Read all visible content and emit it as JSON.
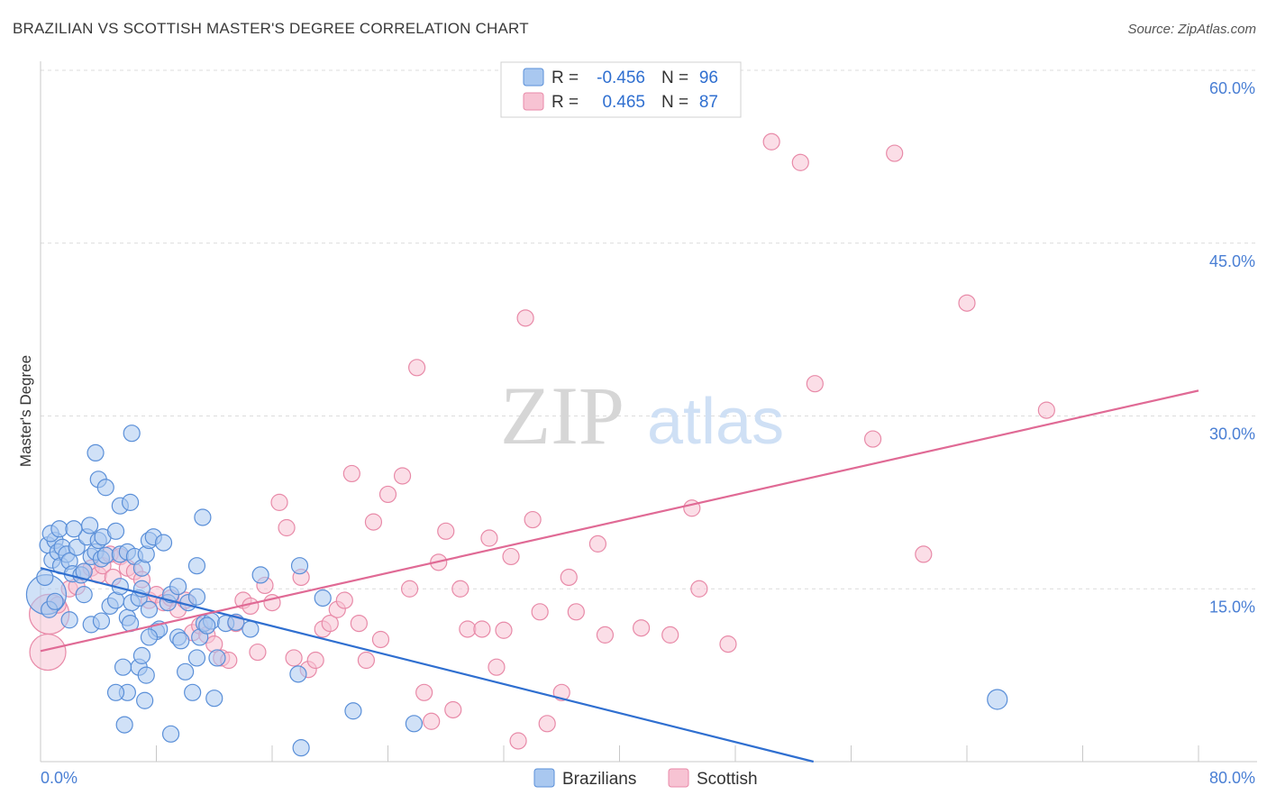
{
  "title": "BRAZILIAN VS SCOTTISH MASTER'S DEGREE CORRELATION CHART",
  "source": "Source: ZipAtlas.com",
  "watermark": {
    "zip": "ZIP",
    "atlas": "atlas"
  },
  "colors": {
    "blue_fill": "#a9c8f0",
    "blue_stroke": "#5a8fd8",
    "blue_line": "#2f6fd0",
    "pink_fill": "#f7c3d3",
    "pink_stroke": "#e88aa8",
    "pink_line": "#e06a95",
    "grid": "#dcdcdc",
    "axis_label": "#4a7fd4"
  },
  "legend": {
    "row1": {
      "r_label": "R =",
      "r_value": "-0.456",
      "n_label": "N =",
      "n_value": "96"
    },
    "row2": {
      "r_label": "R =",
      "r_value": "0.465",
      "n_label": "N =",
      "n_value": "87"
    }
  },
  "chart_data": {
    "type": "scatter",
    "title": "BRAZILIAN VS SCOTTISH MASTER'S DEGREE CORRELATION CHART",
    "xlabel": "",
    "ylabel": "Master's Degree",
    "xlim": [
      0,
      80
    ],
    "ylim": [
      0,
      60
    ],
    "y_ticks": [
      15,
      30,
      45,
      60
    ],
    "y_tick_labels": [
      "15.0%",
      "30.0%",
      "45.0%",
      "60.0%"
    ],
    "x_tick_labels": [
      "0.0%",
      "80.0%"
    ],
    "x_minor_ticks": [
      0,
      8,
      16,
      24,
      32,
      40,
      48,
      56,
      64,
      72,
      80
    ],
    "series": [
      {
        "name": "Brazilians",
        "R": -0.456,
        "N": 96,
        "trend": {
          "x0": 0,
          "y0": 16.8,
          "x1": 53.4,
          "y1": 0
        },
        "points": [
          [
            0.4,
            14.5
          ],
          [
            0.6,
            13.2
          ],
          [
            0.5,
            18.8
          ],
          [
            0.8,
            17.5
          ],
          [
            1.0,
            19.2
          ],
          [
            1.2,
            18.2
          ],
          [
            1.5,
            18.6
          ],
          [
            1.4,
            17.0
          ],
          [
            1.8,
            18.0
          ],
          [
            2.0,
            17.4
          ],
          [
            2.2,
            16.3
          ],
          [
            2.5,
            18.6
          ],
          [
            2.8,
            16.2
          ],
          [
            3.0,
            16.5
          ],
          [
            3.2,
            19.5
          ],
          [
            3.5,
            17.8
          ],
          [
            3.8,
            18.2
          ],
          [
            4.0,
            19.2
          ],
          [
            4.2,
            17.6
          ],
          [
            4.5,
            17.9
          ],
          [
            0.7,
            19.8
          ],
          [
            1.3,
            20.2
          ],
          [
            2.3,
            20.2
          ],
          [
            3.4,
            20.5
          ],
          [
            4.3,
            19.5
          ],
          [
            5.2,
            20.0
          ],
          [
            5.5,
            18.0
          ],
          [
            6.0,
            18.2
          ],
          [
            6.5,
            17.8
          ],
          [
            7.0,
            16.8
          ],
          [
            7.3,
            18.0
          ],
          [
            7.5,
            19.2
          ],
          [
            7.8,
            19.5
          ],
          [
            3.8,
            26.8
          ],
          [
            4.0,
            24.5
          ],
          [
            4.5,
            23.8
          ],
          [
            5.5,
            22.2
          ],
          [
            6.2,
            22.5
          ],
          [
            6.3,
            28.5
          ],
          [
            11.2,
            21.2
          ],
          [
            10.8,
            17.0
          ],
          [
            3.5,
            11.9
          ],
          [
            4.2,
            12.2
          ],
          [
            4.8,
            13.5
          ],
          [
            5.2,
            14.0
          ],
          [
            5.5,
            15.2
          ],
          [
            6.0,
            12.5
          ],
          [
            6.3,
            13.8
          ],
          [
            6.8,
            14.2
          ],
          [
            7.0,
            15.0
          ],
          [
            7.5,
            13.2
          ],
          [
            8.0,
            11.3
          ],
          [
            8.2,
            11.5
          ],
          [
            8.8,
            13.8
          ],
          [
            9.0,
            14.5
          ],
          [
            9.5,
            10.8
          ],
          [
            9.7,
            10.5
          ],
          [
            10.2,
            13.8
          ],
          [
            10.8,
            14.3
          ],
          [
            11.0,
            10.8
          ],
          [
            11.3,
            12.0
          ],
          [
            11.8,
            12.2
          ],
          [
            12.2,
            9.0
          ],
          [
            12.8,
            12.0
          ],
          [
            13.5,
            12.1
          ],
          [
            14.5,
            11.5
          ],
          [
            15.2,
            16.2
          ],
          [
            17.9,
            17.0
          ],
          [
            17.8,
            7.6
          ],
          [
            19.5,
            14.2
          ],
          [
            6.2,
            12.0
          ],
          [
            6.8,
            8.2
          ],
          [
            5.7,
            8.2
          ],
          [
            7.0,
            9.2
          ],
          [
            7.3,
            7.5
          ],
          [
            7.5,
            10.8
          ],
          [
            9.5,
            15.2
          ],
          [
            10.0,
            7.8
          ],
          [
            10.8,
            9.0
          ],
          [
            11.5,
            11.8
          ],
          [
            12.0,
            5.5
          ],
          [
            10.5,
            6.0
          ],
          [
            6.0,
            6.0
          ],
          [
            5.2,
            6.0
          ],
          [
            7.2,
            5.3
          ],
          [
            5.8,
            3.2
          ],
          [
            9.0,
            2.4
          ],
          [
            18.0,
            1.2
          ],
          [
            21.6,
            4.4
          ],
          [
            25.8,
            3.3
          ],
          [
            66.1,
            5.4
          ],
          [
            1.0,
            13.9
          ],
          [
            2.0,
            12.3
          ],
          [
            3.0,
            14.5
          ],
          [
            8.5,
            19.0
          ],
          [
            0.3,
            16.0
          ]
        ],
        "sizes": {
          "0": 22,
          "90": 11
        }
      },
      {
        "name": "Scottish",
        "R": 0.465,
        "N": 87,
        "trend": {
          "x0": 0,
          "y0": 9.6,
          "x1": 80,
          "y1": 32.2
        },
        "points": [
          [
            0.5,
            9.5
          ],
          [
            0.6,
            12.8
          ],
          [
            1.2,
            13.6
          ],
          [
            2.0,
            15.0
          ],
          [
            2.5,
            15.2
          ],
          [
            3.0,
            16.5
          ],
          [
            3.5,
            16.8
          ],
          [
            4.0,
            16.2
          ],
          [
            4.3,
            17.0
          ],
          [
            4.8,
            18.0
          ],
          [
            5.0,
            16.0
          ],
          [
            5.5,
            17.8
          ],
          [
            6.0,
            16.8
          ],
          [
            6.5,
            16.5
          ],
          [
            7.0,
            15.8
          ],
          [
            7.5,
            14.0
          ],
          [
            8.0,
            14.5
          ],
          [
            8.5,
            13.8
          ],
          [
            9.0,
            14.2
          ],
          [
            9.5,
            13.2
          ],
          [
            10.0,
            14.0
          ],
          [
            10.5,
            11.2
          ],
          [
            11.0,
            11.8
          ],
          [
            11.5,
            11.0
          ],
          [
            12.0,
            10.2
          ],
          [
            12.5,
            9.0
          ],
          [
            13.0,
            8.8
          ],
          [
            13.5,
            12.0
          ],
          [
            14.0,
            14.0
          ],
          [
            14.5,
            13.5
          ],
          [
            15.0,
            9.5
          ],
          [
            15.5,
            15.3
          ],
          [
            16.0,
            13.8
          ],
          [
            16.5,
            22.5
          ],
          [
            17.0,
            20.3
          ],
          [
            17.5,
            9.0
          ],
          [
            18.0,
            16.0
          ],
          [
            18.5,
            8.0
          ],
          [
            19.0,
            8.8
          ],
          [
            19.5,
            11.5
          ],
          [
            20.0,
            12.0
          ],
          [
            20.5,
            13.2
          ],
          [
            21.0,
            14.0
          ],
          [
            21.5,
            25.0
          ],
          [
            22.0,
            12.0
          ],
          [
            22.5,
            8.8
          ],
          [
            23.0,
            20.8
          ],
          [
            23.5,
            10.6
          ],
          [
            24.0,
            23.2
          ],
          [
            25.0,
            24.8
          ],
          [
            25.5,
            15.0
          ],
          [
            26.0,
            34.2
          ],
          [
            26.5,
            6.0
          ],
          [
            27.0,
            3.5
          ],
          [
            27.5,
            17.3
          ],
          [
            28.0,
            20.0
          ],
          [
            28.5,
            4.5
          ],
          [
            29.0,
            15.0
          ],
          [
            29.5,
            11.5
          ],
          [
            30.5,
            11.5
          ],
          [
            31.0,
            19.4
          ],
          [
            31.5,
            8.2
          ],
          [
            32.0,
            11.4
          ],
          [
            32.5,
            17.8
          ],
          [
            33.0,
            1.8
          ],
          [
            33.5,
            38.5
          ],
          [
            34.0,
            21.0
          ],
          [
            34.5,
            13.0
          ],
          [
            35.0,
            3.3
          ],
          [
            36.0,
            6.0
          ],
          [
            36.5,
            16.0
          ],
          [
            37.0,
            13.0
          ],
          [
            38.5,
            18.9
          ],
          [
            39.0,
            11.0
          ],
          [
            41.5,
            11.6
          ],
          [
            43.5,
            11.0
          ],
          [
            45.0,
            22.0
          ],
          [
            45.5,
            15.0
          ],
          [
            47.5,
            10.2
          ],
          [
            50.5,
            53.8
          ],
          [
            52.5,
            52.0
          ],
          [
            53.5,
            32.8
          ],
          [
            57.5,
            28.0
          ],
          [
            59.0,
            52.8
          ],
          [
            61.0,
            18.0
          ],
          [
            64.0,
            39.8
          ],
          [
            69.5,
            30.5
          ]
        ],
        "sizes": {
          "0": 20,
          "1": 22
        }
      }
    ],
    "legend_labels": [
      "Brazilians",
      "Scottish"
    ]
  }
}
